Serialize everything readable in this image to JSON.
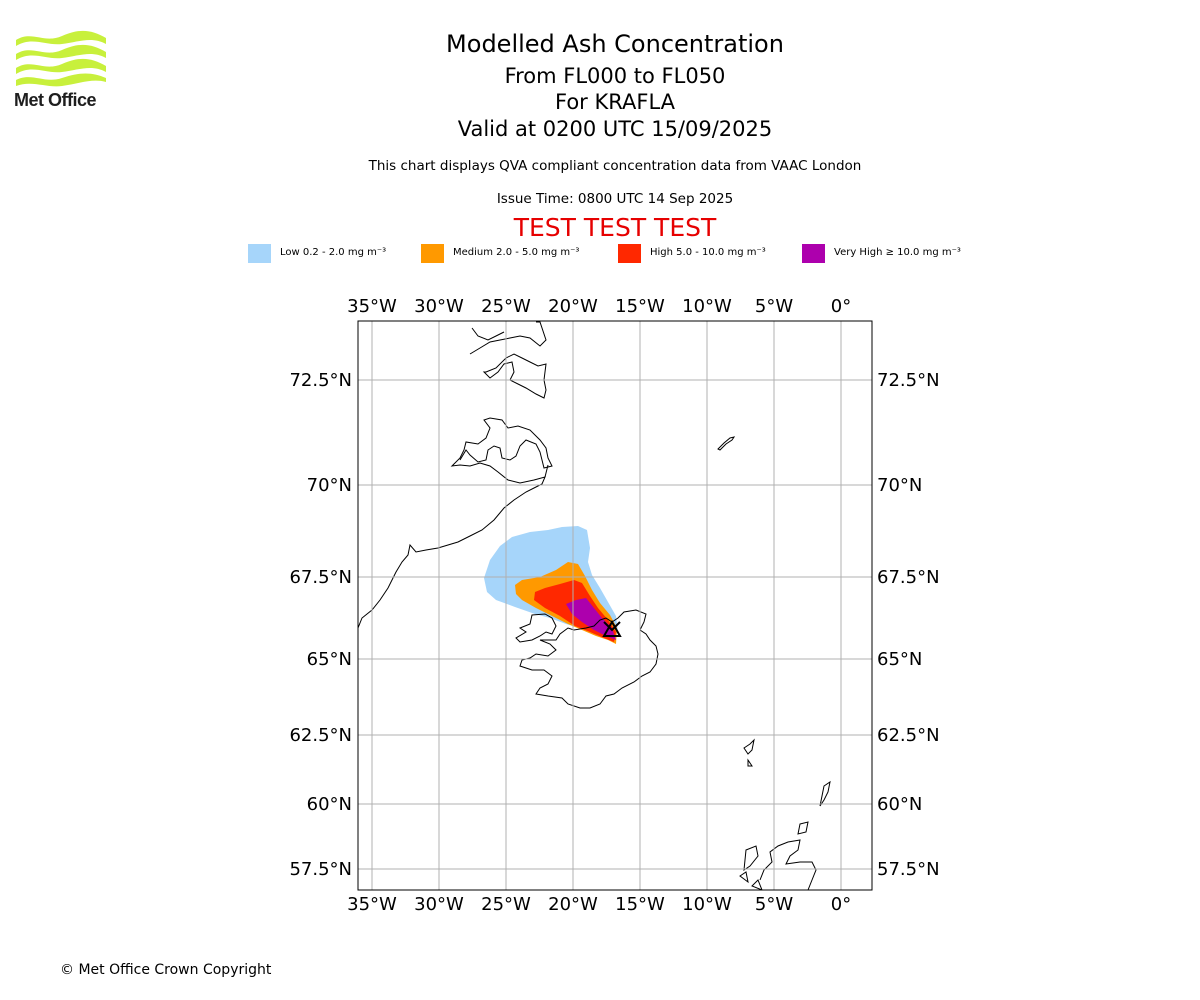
{
  "logo": {
    "text": "Met Office",
    "color": "#c8f03c"
  },
  "header": {
    "title": "Modelled Ash Concentration",
    "levels": "From FL000 to FL050",
    "volcano": "For KRAFLA",
    "valid": "Valid at 0200 UTC 15/09/2025",
    "description": "This chart displays QVA compliant concentration data from VAAC London",
    "issue_time": "Issue Time: 0800 UTC 14 Sep 2025",
    "test_banner": "TEST TEST TEST"
  },
  "legend": [
    {
      "label": "Low 0.2 - 2.0 mg m⁻³",
      "color": "#a6d5fa"
    },
    {
      "label": "Medium 2.0 - 5.0 mg m⁻³",
      "color": "#ff9900"
    },
    {
      "label": "High 5.0 - 10.0 mg m⁻³",
      "color": "#ff2800"
    },
    {
      "label": "Very High ≥ 10.0 mg m⁻³",
      "color": "#ad00ad"
    }
  ],
  "map": {
    "lon_ticks": [
      "35°W",
      "30°W",
      "25°W",
      "20°W",
      "15°W",
      "10°W",
      "5°W",
      "0°"
    ],
    "lat_ticks": [
      "72.5°N",
      "70°N",
      "67.5°N",
      "65°N",
      "62.5°N",
      "60°N",
      "57.5°N"
    ],
    "source_volcano": "Krafla"
  },
  "footer": {
    "copyright": "© Met Office Crown Copyright"
  }
}
